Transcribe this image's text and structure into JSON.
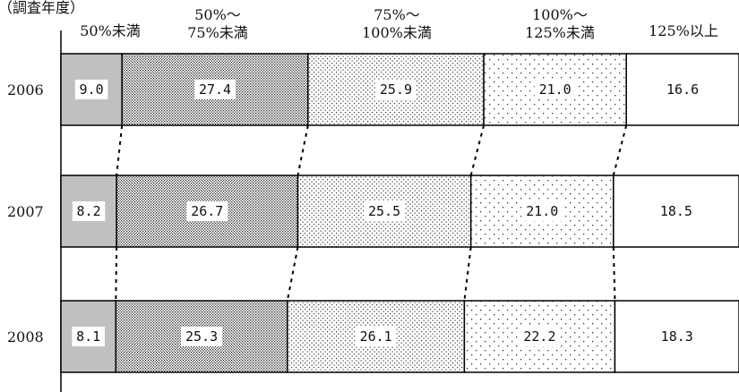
{
  "chart_data": {
    "type": "bar",
    "stacked": true,
    "orientation": "horizontal",
    "percent_stacked": true,
    "axis_title_y": "（調査年度）",
    "categories": [
      "2006",
      "2007",
      "2008"
    ],
    "series": [
      {
        "name": "50%未満",
        "values": [
          9.0,
          8.2,
          8.1
        ],
        "value_labels": [
          "9.0",
          "8.2",
          "8.1"
        ],
        "fill": "gray"
      },
      {
        "name": "50%～75%未満",
        "name_lines": [
          "50%～",
          "75%未満"
        ],
        "values": [
          27.4,
          26.7,
          25.3
        ],
        "value_labels": [
          "27.4",
          "26.7",
          "25.3"
        ],
        "fill": "dense-dots"
      },
      {
        "name": "75%～100%未満",
        "name_lines": [
          "75%～",
          "100%未満"
        ],
        "values": [
          25.9,
          25.5,
          26.1
        ],
        "value_labels": [
          "25.9",
          "25.5",
          "26.1"
        ],
        "fill": "medium-dots"
      },
      {
        "name": "100%～125%未満",
        "name_lines": [
          "100%～",
          "125%未満"
        ],
        "values": [
          21.0,
          21.0,
          22.2
        ],
        "value_labels": [
          "21.0",
          "21.0",
          "22.2"
        ],
        "fill": "sparse-dots"
      },
      {
        "name": "125%以上",
        "values": [
          16.6,
          18.5,
          18.3
        ],
        "value_labels": [
          "16.6",
          "18.5",
          "18.3"
        ],
        "fill": "white"
      }
    ],
    "xlim": [
      0,
      100
    ],
    "connector_lines": "dotted",
    "grid": false
  }
}
